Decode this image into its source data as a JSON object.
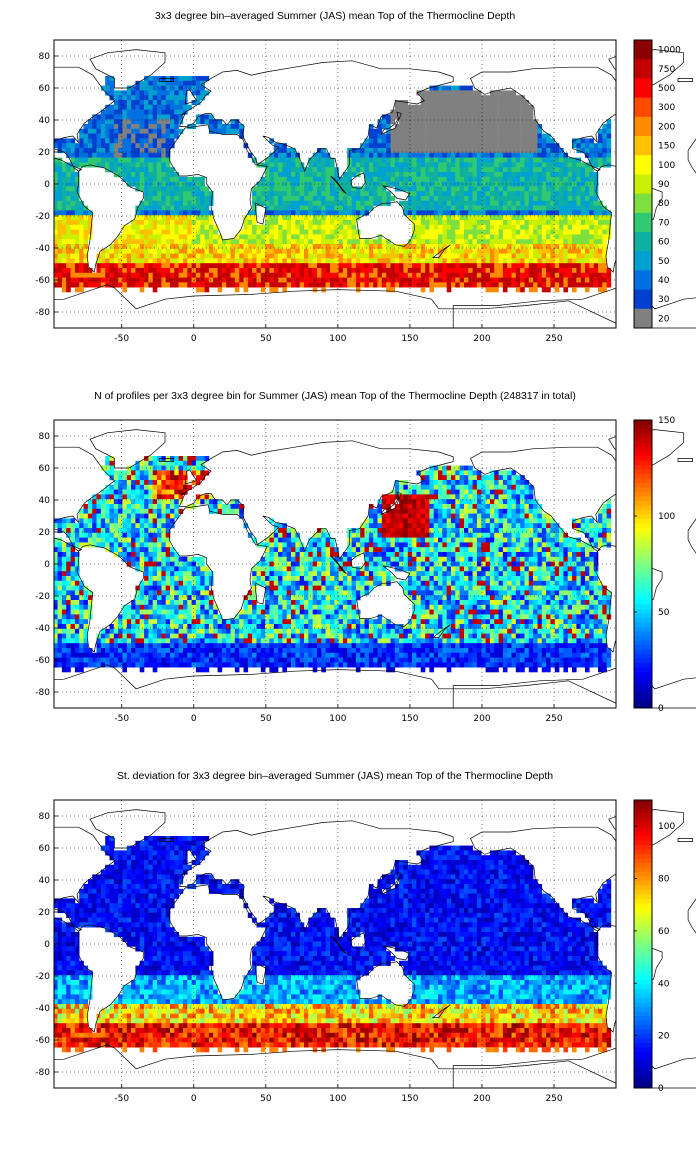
{
  "chart_data": [
    {
      "type": "heatmap",
      "title": "3x3 degree bin–averaged Summer (JAS) mean Top of the Thermocline Depth",
      "xlim": [
        -97,
        293
      ],
      "ylim": [
        -90,
        90
      ],
      "x_ticks": [
        -50,
        0,
        50,
        100,
        150,
        200,
        250
      ],
      "x_tick_labels": [
        "-50",
        "0",
        "50",
        "100",
        "150",
        "200",
        "250"
      ],
      "y_ticks": [
        80,
        60,
        40,
        20,
        0,
        -20,
        -40,
        -60,
        -80
      ],
      "y_tick_labels": [
        "80",
        "60",
        "40",
        "20",
        "0",
        "-20",
        "-40",
        "-60",
        "-80"
      ],
      "grid": true,
      "colorbar": {
        "scale": "categorical",
        "labels": [
          "1000",
          "750",
          "500",
          "300",
          "200",
          "150",
          "100",
          "90",
          "80",
          "70",
          "60",
          "50",
          "40",
          "30",
          "20"
        ],
        "colors": [
          "#8b0000",
          "#c40000",
          "#ff0000",
          "#ff4a00",
          "#ff8c00",
          "#ffc000",
          "#ffff00",
          "#c8f000",
          "#7de040",
          "#30c870",
          "#10b0a0",
          "#00a0d0",
          "#0070e0",
          "#0040d0",
          "#808080"
        ]
      },
      "field": "depth"
    },
    {
      "type": "heatmap",
      "title": "N of profiles per 3x3 degree bin for Summer (JAS) mean Top of the Thermocline Depth  (248317 in total)",
      "xlim": [
        -97,
        293
      ],
      "ylim": [
        -90,
        90
      ],
      "x_ticks": [
        -50,
        0,
        50,
        100,
        150,
        200,
        250
      ],
      "x_tick_labels": [
        "-50",
        "0",
        "50",
        "100",
        "150",
        "200",
        "250"
      ],
      "y_ticks": [
        80,
        60,
        40,
        20,
        0,
        -20,
        -40,
        -60,
        -80
      ],
      "y_tick_labels": [
        "80",
        "60",
        "40",
        "20",
        "0",
        "-20",
        "-40",
        "-60",
        "-80"
      ],
      "grid": true,
      "colorbar": {
        "scale": "continuous",
        "range": [
          0,
          150
        ],
        "ticks": [
          0,
          50,
          100,
          150
        ],
        "tick_labels": [
          "0",
          "50",
          "100",
          "150"
        ],
        "colormap": "jet"
      },
      "total_profiles": 248317,
      "field": "count"
    },
    {
      "type": "heatmap",
      "title": "St. deviation for 3x3 degree bin–averaged Summer (JAS) mean Top of the Thermocline Depth",
      "xlim": [
        -97,
        293
      ],
      "ylim": [
        -90,
        90
      ],
      "x_ticks": [
        -50,
        0,
        50,
        100,
        150,
        200,
        250
      ],
      "x_tick_labels": [
        "-50",
        "0",
        "50",
        "100",
        "150",
        "200",
        "250"
      ],
      "y_ticks": [
        80,
        60,
        40,
        20,
        0,
        -20,
        -40,
        -60,
        -80
      ],
      "y_tick_labels": [
        "80",
        "60",
        "40",
        "20",
        "0",
        "-20",
        "-40",
        "-60",
        "-80"
      ],
      "grid": true,
      "colorbar": {
        "scale": "continuous",
        "range": [
          0,
          110
        ],
        "ticks": [
          0,
          20,
          40,
          60,
          80,
          100
        ],
        "tick_labels": [
          "0",
          "20",
          "40",
          "60",
          "80",
          "100"
        ],
        "colormap": "jet"
      },
      "field": "std"
    }
  ]
}
